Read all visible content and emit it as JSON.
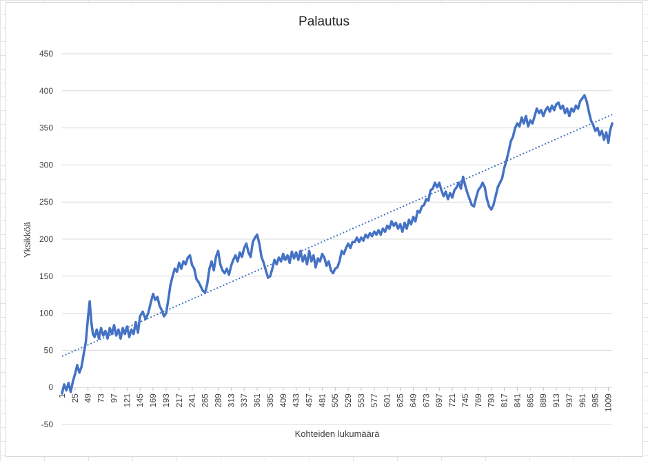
{
  "chart_data": {
    "type": "line",
    "title": "Palautus",
    "xlabel": "Kohteiden lukumäärä",
    "ylabel": "Yksikköä",
    "ylim": [
      -50,
      450
    ],
    "y_ticks": [
      -50,
      0,
      50,
      100,
      150,
      200,
      250,
      300,
      350,
      400,
      450
    ],
    "xlim": [
      1,
      1016
    ],
    "x_ticks": [
      1,
      25,
      49,
      73,
      97,
      121,
      145,
      169,
      193,
      217,
      241,
      265,
      289,
      313,
      337,
      361,
      385,
      409,
      433,
      457,
      481,
      505,
      529,
      553,
      577,
      601,
      625,
      649,
      673,
      697,
      721,
      745,
      769,
      793,
      817,
      841,
      865,
      889,
      913,
      937,
      961,
      985,
      1009
    ],
    "grid": true,
    "legend": "none",
    "colors": {
      "series": "#4472c4",
      "trend": "#4472c4",
      "grid": "#d9d9d9",
      "text": "#404040"
    },
    "trendline": {
      "style": "dotted",
      "linear": true,
      "start": [
        1,
        42
      ],
      "end": [
        1016,
        368
      ]
    },
    "series": [
      {
        "style": "solid",
        "points": [
          [
            1,
            -8
          ],
          [
            5,
            4
          ],
          [
            9,
            -4
          ],
          [
            13,
            6
          ],
          [
            17,
            -6
          ],
          [
            21,
            8
          ],
          [
            25,
            18
          ],
          [
            29,
            30
          ],
          [
            33,
            20
          ],
          [
            37,
            28
          ],
          [
            41,
            45
          ],
          [
            45,
            62
          ],
          [
            49,
            95
          ],
          [
            52,
            116
          ],
          [
            55,
            88
          ],
          [
            58,
            72
          ],
          [
            61,
            68
          ],
          [
            65,
            78
          ],
          [
            69,
            66
          ],
          [
            73,
            80
          ],
          [
            77,
            70
          ],
          [
            81,
            76
          ],
          [
            85,
            66
          ],
          [
            89,
            80
          ],
          [
            93,
            72
          ],
          [
            97,
            84
          ],
          [
            101,
            70
          ],
          [
            105,
            78
          ],
          [
            109,
            66
          ],
          [
            113,
            80
          ],
          [
            117,
            72
          ],
          [
            121,
            82
          ],
          [
            125,
            68
          ],
          [
            129,
            78
          ],
          [
            133,
            72
          ],
          [
            137,
            88
          ],
          [
            141,
            74
          ],
          [
            145,
            96
          ],
          [
            150,
            102
          ],
          [
            155,
            92
          ],
          [
            160,
            100
          ],
          [
            165,
            115
          ],
          [
            169,
            126
          ],
          [
            173,
            118
          ],
          [
            177,
            122
          ],
          [
            181,
            110
          ],
          [
            185,
            104
          ],
          [
            189,
            96
          ],
          [
            193,
            100
          ],
          [
            197,
            118
          ],
          [
            201,
            138
          ],
          [
            205,
            150
          ],
          [
            209,
            160
          ],
          [
            213,
            156
          ],
          [
            217,
            168
          ],
          [
            221,
            160
          ],
          [
            225,
            170
          ],
          [
            229,
            166
          ],
          [
            233,
            175
          ],
          [
            237,
            178
          ],
          [
            241,
            165
          ],
          [
            245,
            160
          ],
          [
            249,
            146
          ],
          [
            253,
            142
          ],
          [
            257,
            136
          ],
          [
            261,
            130
          ],
          [
            265,
            128
          ],
          [
            269,
            140
          ],
          [
            273,
            160
          ],
          [
            277,
            170
          ],
          [
            281,
            158
          ],
          [
            285,
            176
          ],
          [
            289,
            184
          ],
          [
            293,
            166
          ],
          [
            297,
            158
          ],
          [
            301,
            154
          ],
          [
            305,
            160
          ],
          [
            309,
            152
          ],
          [
            313,
            164
          ],
          [
            317,
            172
          ],
          [
            321,
            178
          ],
          [
            325,
            170
          ],
          [
            329,
            182
          ],
          [
            333,
            176
          ],
          [
            337,
            188
          ],
          [
            341,
            194
          ],
          [
            345,
            182
          ],
          [
            349,
            176
          ],
          [
            353,
            196
          ],
          [
            357,
            202
          ],
          [
            361,
            206
          ],
          [
            365,
            194
          ],
          [
            369,
            176
          ],
          [
            373,
            168
          ],
          [
            377,
            158
          ],
          [
            381,
            148
          ],
          [
            385,
            150
          ],
          [
            389,
            160
          ],
          [
            393,
            172
          ],
          [
            397,
            166
          ],
          [
            401,
            175
          ],
          [
            405,
            170
          ],
          [
            409,
            180
          ],
          [
            413,
            172
          ],
          [
            417,
            178
          ],
          [
            421,
            168
          ],
          [
            425,
            183
          ],
          [
            429,
            174
          ],
          [
            433,
            182
          ],
          [
            437,
            172
          ],
          [
            441,
            184
          ],
          [
            445,
            170
          ],
          [
            449,
            178
          ],
          [
            453,
            166
          ],
          [
            457,
            184
          ],
          [
            461,
            170
          ],
          [
            465,
            178
          ],
          [
            469,
            162
          ],
          [
            473,
            174
          ],
          [
            477,
            170
          ],
          [
            481,
            180
          ],
          [
            485,
            175
          ],
          [
            489,
            164
          ],
          [
            493,
            170
          ],
          [
            497,
            158
          ],
          [
            501,
            154
          ],
          [
            505,
            160
          ],
          [
            509,
            162
          ],
          [
            513,
            170
          ],
          [
            517,
            184
          ],
          [
            521,
            180
          ],
          [
            525,
            188
          ],
          [
            529,
            194
          ],
          [
            533,
            188
          ],
          [
            537,
            196
          ],
          [
            541,
            196
          ],
          [
            545,
            202
          ],
          [
            549,
            196
          ],
          [
            553,
            202
          ],
          [
            557,
            198
          ],
          [
            561,
            206
          ],
          [
            565,
            202
          ],
          [
            569,
            208
          ],
          [
            573,
            204
          ],
          [
            577,
            210
          ],
          [
            581,
            206
          ],
          [
            585,
            212
          ],
          [
            589,
            206
          ],
          [
            593,
            214
          ],
          [
            597,
            210
          ],
          [
            601,
            218
          ],
          [
            605,
            214
          ],
          [
            609,
            224
          ],
          [
            613,
            218
          ],
          [
            617,
            222
          ],
          [
            621,
            214
          ],
          [
            625,
            220
          ],
          [
            629,
            210
          ],
          [
            633,
            222
          ],
          [
            637,
            214
          ],
          [
            641,
            226
          ],
          [
            645,
            220
          ],
          [
            649,
            230
          ],
          [
            653,
            224
          ],
          [
            657,
            238
          ],
          [
            661,
            236
          ],
          [
            665,
            244
          ],
          [
            669,
            246
          ],
          [
            673,
            254
          ],
          [
            677,
            252
          ],
          [
            681,
            266
          ],
          [
            685,
            268
          ],
          [
            689,
            276
          ],
          [
            693,
            270
          ],
          [
            697,
            276
          ],
          [
            701,
            266
          ],
          [
            705,
            258
          ],
          [
            709,
            264
          ],
          [
            713,
            254
          ],
          [
            717,
            262
          ],
          [
            721,
            256
          ],
          [
            725,
            266
          ],
          [
            729,
            270
          ],
          [
            733,
            276
          ],
          [
            737,
            268
          ],
          [
            741,
            284
          ],
          [
            745,
            272
          ],
          [
            749,
            262
          ],
          [
            753,
            254
          ],
          [
            757,
            246
          ],
          [
            761,
            244
          ],
          [
            765,
            256
          ],
          [
            769,
            266
          ],
          [
            773,
            270
          ],
          [
            777,
            276
          ],
          [
            781,
            270
          ],
          [
            785,
            254
          ],
          [
            789,
            244
          ],
          [
            793,
            240
          ],
          [
            797,
            246
          ],
          [
            801,
            258
          ],
          [
            805,
            270
          ],
          [
            809,
            276
          ],
          [
            813,
            282
          ],
          [
            817,
            296
          ],
          [
            821,
            306
          ],
          [
            825,
            318
          ],
          [
            829,
            332
          ],
          [
            833,
            338
          ],
          [
            837,
            350
          ],
          [
            841,
            356
          ],
          [
            845,
            352
          ],
          [
            849,
            364
          ],
          [
            853,
            356
          ],
          [
            857,
            366
          ],
          [
            861,
            352
          ],
          [
            865,
            360
          ],
          [
            869,
            356
          ],
          [
            873,
            366
          ],
          [
            877,
            376
          ],
          [
            881,
            370
          ],
          [
            885,
            374
          ],
          [
            889,
            366
          ],
          [
            893,
            374
          ],
          [
            897,
            378
          ],
          [
            901,
            372
          ],
          [
            905,
            380
          ],
          [
            909,
            374
          ],
          [
            913,
            382
          ],
          [
            917,
            384
          ],
          [
            921,
            376
          ],
          [
            925,
            380
          ],
          [
            929,
            370
          ],
          [
            933,
            376
          ],
          [
            937,
            366
          ],
          [
            941,
            376
          ],
          [
            945,
            372
          ],
          [
            949,
            380
          ],
          [
            953,
            376
          ],
          [
            957,
            386
          ],
          [
            961,
            390
          ],
          [
            965,
            394
          ],
          [
            969,
            386
          ],
          [
            973,
            372
          ],
          [
            977,
            360
          ],
          [
            981,
            354
          ],
          [
            985,
            346
          ],
          [
            989,
            350
          ],
          [
            993,
            340
          ],
          [
            997,
            346
          ],
          [
            1001,
            334
          ],
          [
            1005,
            344
          ],
          [
            1009,
            330
          ],
          [
            1012,
            346
          ],
          [
            1016,
            356
          ]
        ]
      }
    ]
  }
}
